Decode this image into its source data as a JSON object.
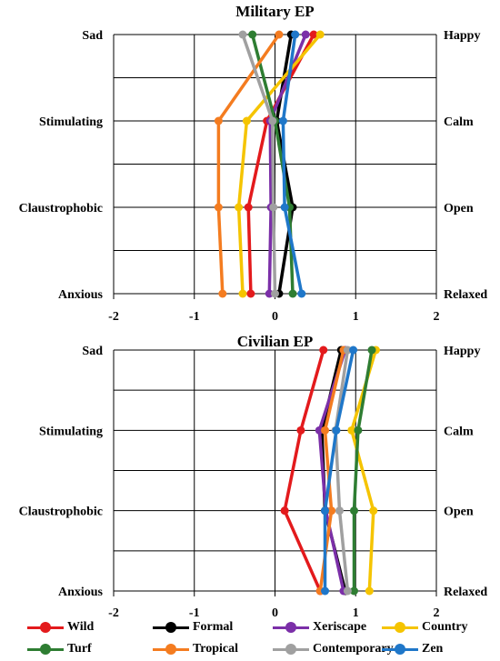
{
  "chart_data": [
    {
      "type": "line",
      "title": "Military EP",
      "orientation": "horizontal-profile",
      "xlim": [
        -2,
        2
      ],
      "x_ticks": [
        "-2",
        "-1",
        "0",
        "1",
        "2"
      ],
      "left_labels": [
        "Sad",
        "Stimulating",
        "Claustrophobic",
        "Anxious"
      ],
      "right_labels": [
        "Happy",
        "Calm",
        "Open",
        "Relaxed"
      ],
      "series": [
        {
          "name": "Wild",
          "color": "#e31a1c",
          "values": [
            0.48,
            -0.1,
            -0.33,
            -0.3
          ]
        },
        {
          "name": "Formal",
          "color": "#000000",
          "values": [
            0.2,
            0.02,
            0.22,
            0.05
          ]
        },
        {
          "name": "Xeriscape",
          "color": "#7b2fa8",
          "values": [
            0.38,
            -0.06,
            -0.05,
            -0.07
          ]
        },
        {
          "name": "Country",
          "color": "#f5c400",
          "values": [
            0.56,
            -0.35,
            -0.45,
            -0.4
          ]
        },
        {
          "name": "Turf",
          "color": "#2e7d32",
          "values": [
            -0.28,
            0.0,
            0.18,
            0.22
          ]
        },
        {
          "name": "Tropical",
          "color": "#f47c20",
          "values": [
            0.05,
            -0.7,
            -0.7,
            -0.65
          ]
        },
        {
          "name": "Contemporary",
          "color": "#a0a0a0",
          "values": [
            -0.4,
            -0.03,
            -0.02,
            0.0
          ]
        },
        {
          "name": "Zen",
          "color": "#1f77c9",
          "values": [
            0.25,
            0.1,
            0.12,
            0.33
          ]
        }
      ]
    },
    {
      "type": "line",
      "title": "Civilian EP",
      "orientation": "horizontal-profile",
      "xlim": [
        -2,
        2
      ],
      "x_ticks": [
        "-2",
        "-1",
        "0",
        "1",
        "2"
      ],
      "left_labels": [
        "Sad",
        "Stimulating",
        "Claustrophobic",
        "Anxious"
      ],
      "right_labels": [
        "Happy",
        "Calm",
        "Open",
        "Relaxed"
      ],
      "series": [
        {
          "name": "Wild",
          "color": "#e31a1c",
          "values": [
            0.6,
            0.32,
            0.12,
            0.56
          ]
        },
        {
          "name": "Formal",
          "color": "#000000",
          "values": [
            0.82,
            0.58,
            0.62,
            0.87
          ]
        },
        {
          "name": "Xeriscape",
          "color": "#7b2fa8",
          "values": [
            0.87,
            0.55,
            0.63,
            0.85
          ]
        },
        {
          "name": "Country",
          "color": "#f5c400",
          "values": [
            1.25,
            0.95,
            1.22,
            1.17
          ]
        },
        {
          "name": "Turf",
          "color": "#2e7d32",
          "values": [
            1.2,
            1.03,
            0.98,
            0.98
          ]
        },
        {
          "name": "Tropical",
          "color": "#f47c20",
          "values": [
            0.85,
            0.62,
            0.7,
            0.56
          ]
        },
        {
          "name": "Contemporary",
          "color": "#a0a0a0",
          "values": [
            0.9,
            0.75,
            0.8,
            0.9
          ]
        },
        {
          "name": "Zen",
          "color": "#1f77c9",
          "values": [
            0.97,
            0.76,
            0.62,
            0.62
          ]
        }
      ]
    }
  ],
  "legend": [
    {
      "name": "Wild",
      "color": "#e31a1c"
    },
    {
      "name": "Formal",
      "color": "#000000"
    },
    {
      "name": "Xeriscape",
      "color": "#7b2fa8"
    },
    {
      "name": "Country",
      "color": "#f5c400"
    },
    {
      "name": "Turf",
      "color": "#2e7d32"
    },
    {
      "name": "Tropical",
      "color": "#f47c20"
    },
    {
      "name": "Contemporary",
      "color": "#a0a0a0"
    },
    {
      "name": "Zen",
      "color": "#1f77c9"
    }
  ]
}
